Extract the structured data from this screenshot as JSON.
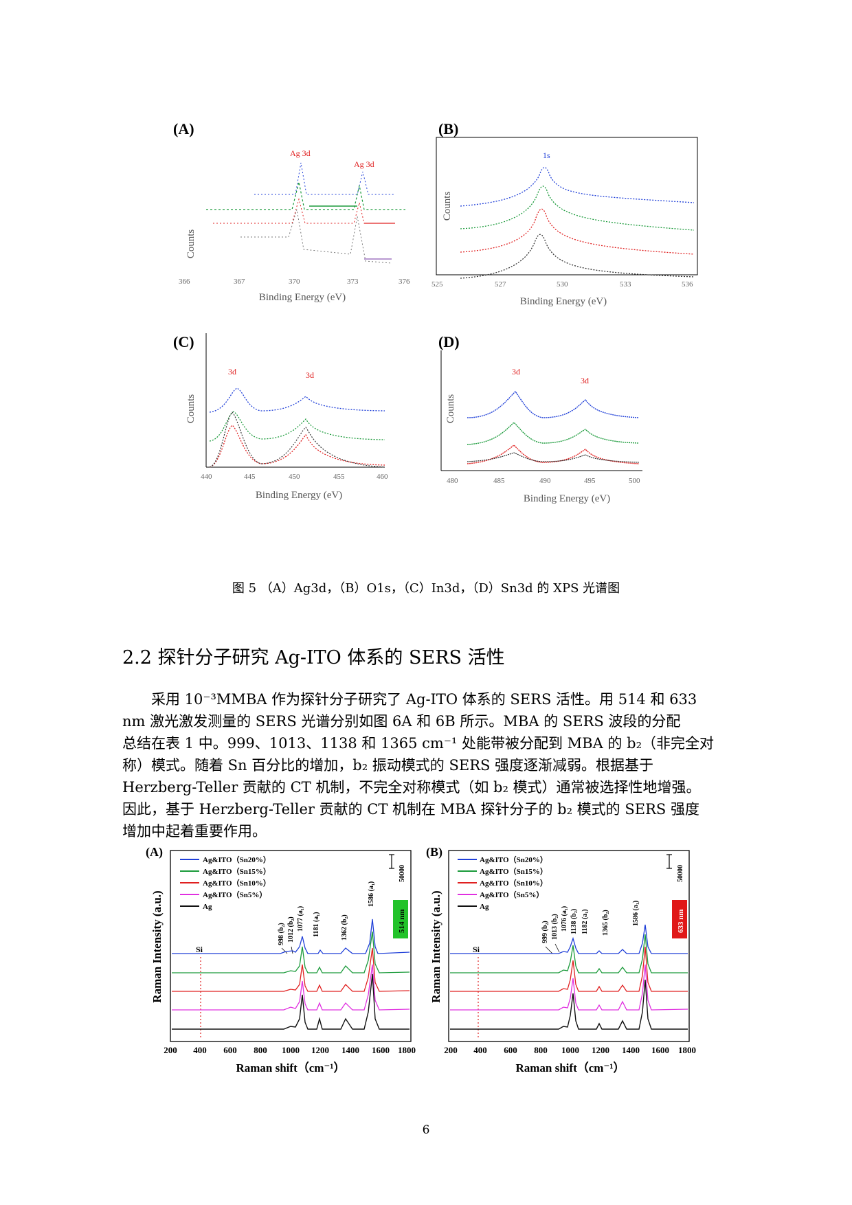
{
  "figure5": {
    "panels": [
      {
        "letter": "(A)",
        "axis_x_label": "Binding Energy (eV)",
        "axis_y_label": "Counts",
        "peaks": [
          "Ag 3d",
          "Ag 3d"
        ],
        "x_ticks": [
          "366",
          "367",
          "370",
          "373",
          "376"
        ]
      },
      {
        "letter": "(B)",
        "axis_x_label": "Binding Energy (eV)",
        "axis_y_label": "Counts",
        "peaks": [
          "1s"
        ],
        "x_ticks": [
          "525",
          "527",
          "530",
          "533",
          "536"
        ]
      },
      {
        "letter": "(C)",
        "axis_x_label": "Binding Energy (eV)",
        "axis_y_label": "Counts",
        "peaks": [
          "3d",
          "3d"
        ],
        "x_ticks": [
          "440",
          "445",
          "450",
          "455",
          "460"
        ]
      },
      {
        "letter": "(D)",
        "axis_x_label": "Binding Energy (eV)",
        "axis_y_label": "Counts",
        "peaks": [
          "3d",
          "3d"
        ],
        "x_ticks": [
          "480",
          "485",
          "490",
          "495",
          "500"
        ]
      }
    ],
    "caption": "图 5 （A）Ag3d，（B）O1s，（C）In3d，（D）Sn3d 的 XPS 光谱图",
    "colors": {
      "blue": "#1f3fd8",
      "green": "#1a9a3a",
      "red": "#e02020",
      "magenta": "#e030e0",
      "black": "#222222"
    }
  },
  "section": {
    "heading": "2.2 探针分子研究 Ag-ITO 体系的 SERS 活性"
  },
  "paragraph": {
    "lines": [
      "采用 10⁻³MMBA 作为探针分子研究了 Ag-ITO 体系的 SERS 活性。用 514 和 633",
      "nm 激光激发测量的 SERS 光谱分别如图 6A 和 6B 所示。MBA 的 SERS 波段的分配",
      "总结在表 1 中。999、1013、1138 和 1365 cm⁻¹ 处能带被分配到 MBA 的 b₂（非完全对",
      "称）模式。随着 Sn 百分比的增加，b₂ 振动模式的 SERS 强度逐渐减弱。根据基于",
      "Herzberg-Teller 贡献的 CT 机制，不完全对称模式（如 b₂ 模式）通常被选择性地增强。",
      "因此，基于 Herzberg-Teller 贡献的 CT 机制在 MBA 探针分子的 b₂ 模式的 SERS 强度",
      "增加中起着重要作用。"
    ]
  },
  "figure6": {
    "panels": [
      {
        "letter": "(A)",
        "legend": [
          "Ag&ITO（Sn20%）",
          "Ag&ITO（Sn15%）",
          "Ag&ITO（Sn10%）",
          "Ag&ITO（Sn5%）",
          "Ag"
        ],
        "peak_labels": [
          "998 (b₂)",
          "1012 (b₂)",
          "1077 (a₁)",
          "1181 (a₁)",
          "1362 (b₂)",
          "1586 (a₁)"
        ],
        "si_label": "Si",
        "laser": "514 nm",
        "laser_color": "#22c32a",
        "scale_label": "50000",
        "xlabel": "Raman shift（cm⁻¹）",
        "ylabel": "Raman Intensity (a.u.)",
        "x_ticks": [
          "200",
          "400",
          "600",
          "800",
          "1000",
          "1200",
          "1400",
          "1600",
          "1800"
        ]
      },
      {
        "letter": "(B)",
        "legend": [
          "Ag&ITO（Sn20%）",
          "Ag&ITO（Sn15%）",
          "Ag&ITO（Sn10%）",
          "Ag&ITO（Sn5%）",
          "Ag"
        ],
        "peak_labels": [
          "999 (b₂)",
          "1013 (b₂)",
          "1076 (a₁)",
          "1138 (b₂)",
          "1182 (a₁)",
          "1365 (b₂)",
          "1586 (a₁)"
        ],
        "si_label": "Si",
        "laser": "633 nm",
        "laser_color": "#e01818",
        "scale_label": "50000",
        "xlabel": "Raman shift（cm⁻¹）",
        "ylabel": "Raman Intensity (a.u.)",
        "x_ticks": [
          "200",
          "400",
          "600",
          "800",
          "1000",
          "1200",
          "1400",
          "1600",
          "1800"
        ]
      }
    ],
    "series_colors": [
      "#1f3fd8",
      "#1a9a3a",
      "#e02020",
      "#e030e0",
      "#111111"
    ]
  },
  "page": {
    "number": "6"
  }
}
